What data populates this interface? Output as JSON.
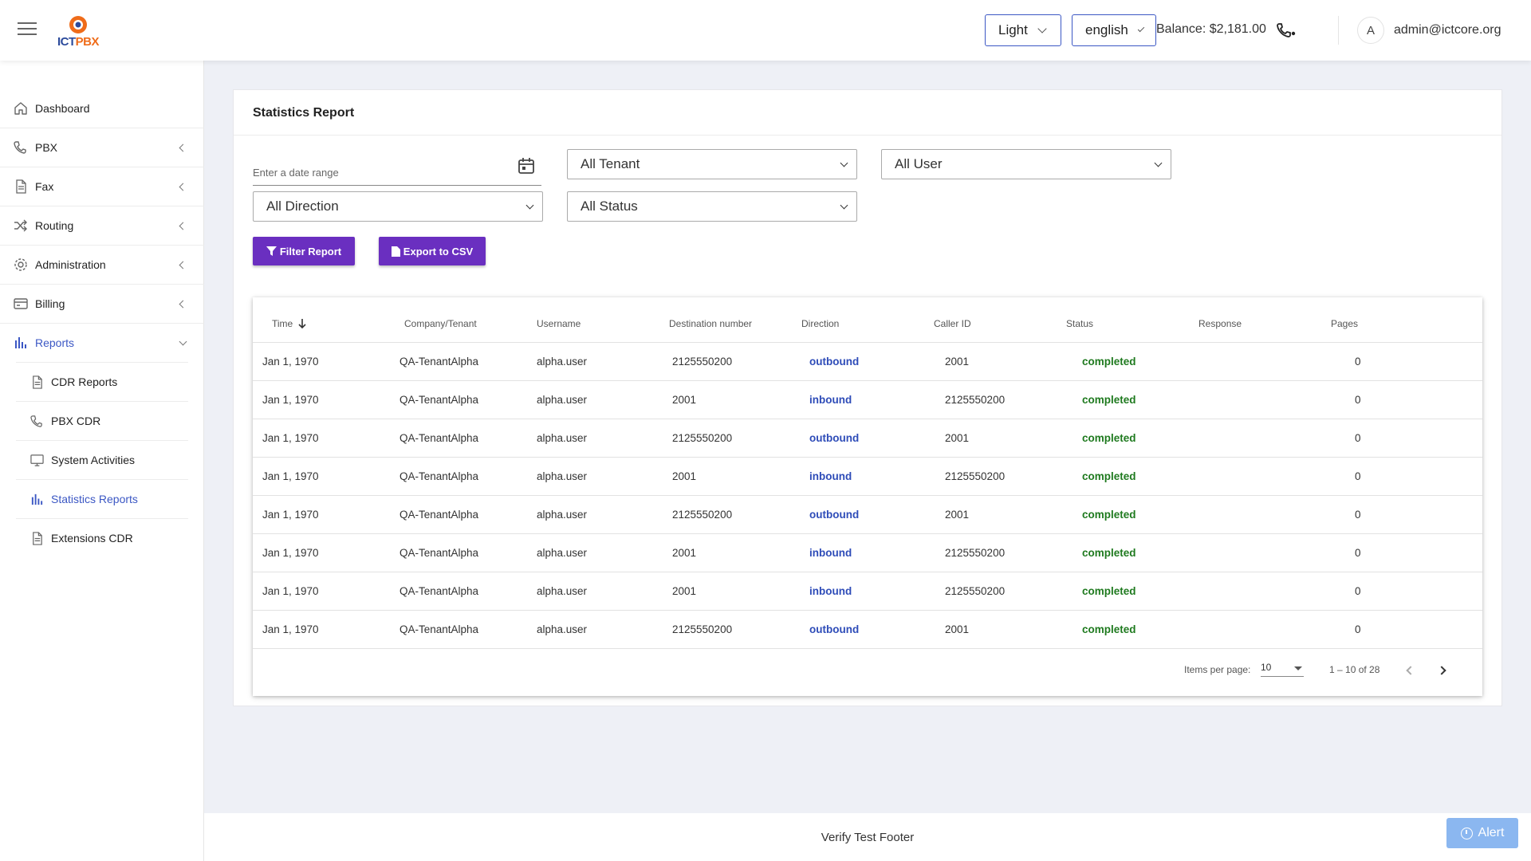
{
  "header": {
    "theme_select": "Light",
    "language_select": "english",
    "balance": "Balance: $2,181.00",
    "avatar_initial": "A",
    "user_email": "admin@ictcore.org",
    "logo_ict": "ICT",
    "logo_pbx": "PBX"
  },
  "sidebar": {
    "items": [
      {
        "label": "Dashboard",
        "icon": "home-icon"
      },
      {
        "label": "PBX",
        "icon": "phone-icon"
      },
      {
        "label": "Fax",
        "icon": "document-icon"
      },
      {
        "label": "Routing",
        "icon": "shuffle-icon"
      },
      {
        "label": "Administration",
        "icon": "gear-icon"
      },
      {
        "label": "Billing",
        "icon": "credit-card-icon"
      },
      {
        "label": "Reports",
        "icon": "bar-chart-icon"
      }
    ],
    "reports_sub": [
      {
        "label": "CDR Reports",
        "icon": "document-icon"
      },
      {
        "label": "PBX CDR",
        "icon": "phone-icon"
      },
      {
        "label": "System Activities",
        "icon": "monitor-icon"
      },
      {
        "label": "Statistics Reports",
        "icon": "bar-chart-icon"
      },
      {
        "label": "Extensions CDR",
        "icon": "document-icon"
      }
    ]
  },
  "report": {
    "title": "Statistics Report",
    "date_placeholder": "Enter a date range",
    "tenant_select": "All Tenant",
    "user_select": "All User",
    "direction_select": "All Direction",
    "status_select": "All Status",
    "filter_button": "Filter Report",
    "export_button": "Export to CSV"
  },
  "table": {
    "columns": [
      "Time",
      "Company/Tenant",
      "Username",
      "Destination number",
      "Direction",
      "Caller ID",
      "Status",
      "Response",
      "Pages"
    ],
    "rows": [
      [
        "Jan 1, 1970",
        "QA-TenantAlpha",
        "alpha.user",
        "2125550200",
        "outbound",
        "2001",
        "completed",
        "",
        "0"
      ],
      [
        "Jan 1, 1970",
        "QA-TenantAlpha",
        "alpha.user",
        "2001",
        "inbound",
        "2125550200",
        "completed",
        "",
        "0"
      ],
      [
        "Jan 1, 1970",
        "QA-TenantAlpha",
        "alpha.user",
        "2125550200",
        "outbound",
        "2001",
        "completed",
        "",
        "0"
      ],
      [
        "Jan 1, 1970",
        "QA-TenantAlpha",
        "alpha.user",
        "2001",
        "inbound",
        "2125550200",
        "completed",
        "",
        "0"
      ],
      [
        "Jan 1, 1970",
        "QA-TenantAlpha",
        "alpha.user",
        "2125550200",
        "outbound",
        "2001",
        "completed",
        "",
        "0"
      ],
      [
        "Jan 1, 1970",
        "QA-TenantAlpha",
        "alpha.user",
        "2001",
        "inbound",
        "2125550200",
        "completed",
        "",
        "0"
      ],
      [
        "Jan 1, 1970",
        "QA-TenantAlpha",
        "alpha.user",
        "2001",
        "inbound",
        "2125550200",
        "completed",
        "",
        "0"
      ],
      [
        "Jan 1, 1970",
        "QA-TenantAlpha",
        "alpha.user",
        "2125550200",
        "outbound",
        "2001",
        "completed",
        "",
        "0"
      ]
    ]
  },
  "pagination": {
    "items_per_page_label": "Items per page:",
    "items_per_page": "10",
    "range": "1 – 10 of 28"
  },
  "footer": {
    "text": "Verify Test Footer",
    "alert_button": "Alert"
  },
  "colors": {
    "primary_button": "#6a2fc0",
    "accent_blue": "#3b57c4",
    "status_green": "#1f7a1f",
    "alert": "#8bb7f0"
  }
}
